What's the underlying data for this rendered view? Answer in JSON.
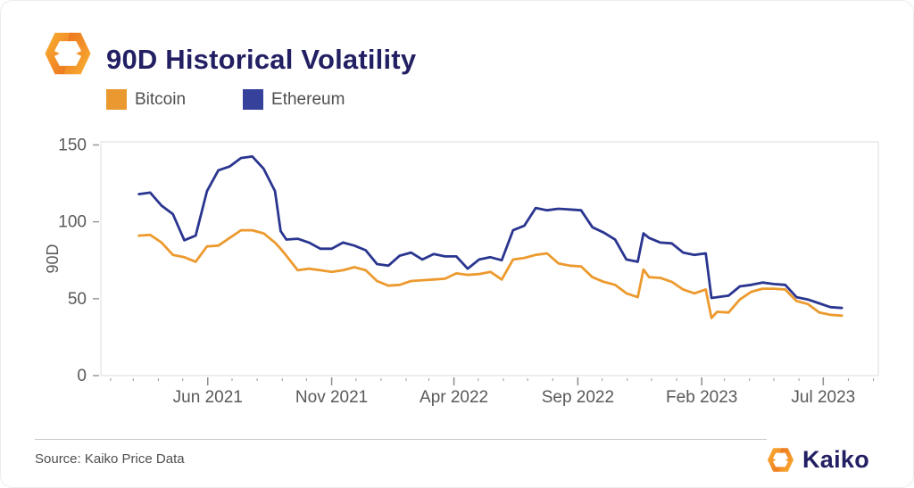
{
  "header": {
    "title": "90D Historical Volatility"
  },
  "legend": [
    {
      "label": "Bitcoin",
      "color": "#E9992F"
    },
    {
      "label": "Ethereum",
      "color": "#35419B"
    }
  ],
  "footer": {
    "source": "Source: Kaiko Price Data",
    "brand": "Kaiko"
  },
  "icons": {
    "brand_mark": "kaiko-hexagon-mark"
  },
  "colors": {
    "title": "#221f63",
    "axis_text": "#595959",
    "tick": "#9a9a9a",
    "plot_border": "#dddddd",
    "bitcoin_line": "#EC9A2E",
    "ethereum_line": "#2A3590"
  },
  "chart_data": {
    "type": "line",
    "title": "90D Historical Volatility",
    "xlabel": "",
    "ylabel": "90D",
    "ylim": [
      0,
      152
    ],
    "yticks": [
      0,
      50,
      100,
      150
    ],
    "grid": false,
    "legend_position": "top-left",
    "x_domain": [
      "2021-01-20",
      "2023-09-07"
    ],
    "xticks": [
      {
        "date": "2021-06-01",
        "label": "Jun 2021"
      },
      {
        "date": "2021-11-01",
        "label": "Nov 2021"
      },
      {
        "date": "2022-04-01",
        "label": "Apr 2022"
      },
      {
        "date": "2022-09-01",
        "label": "Sep 2022"
      },
      {
        "date": "2023-02-01",
        "label": "Feb 2023"
      },
      {
        "date": "2023-07-01",
        "label": "Jul 2023"
      }
    ],
    "minor_ticks": "monthly",
    "series": [
      {
        "name": "Bitcoin",
        "color": "#EC9A2E",
        "points": [
          [
            "2021-03-08",
            91
          ],
          [
            "2021-03-22",
            91.5
          ],
          [
            "2021-04-05",
            86.5
          ],
          [
            "2021-04-19",
            78.5
          ],
          [
            "2021-05-03",
            77
          ],
          [
            "2021-05-17",
            74
          ],
          [
            "2021-05-31",
            84
          ],
          [
            "2021-06-14",
            84.5
          ],
          [
            "2021-06-28",
            89.5
          ],
          [
            "2021-07-12",
            94.5
          ],
          [
            "2021-07-26",
            94.5
          ],
          [
            "2021-08-09",
            92.5
          ],
          [
            "2021-08-23",
            86.5
          ],
          [
            "2021-08-30",
            82.5
          ],
          [
            "2021-09-06",
            78
          ],
          [
            "2021-09-20",
            68.5
          ],
          [
            "2021-10-04",
            69.5
          ],
          [
            "2021-10-18",
            68.5
          ],
          [
            "2021-11-01",
            67.5
          ],
          [
            "2021-11-15",
            68.5
          ],
          [
            "2021-11-29",
            70.5
          ],
          [
            "2021-12-13",
            68.5
          ],
          [
            "2021-12-27",
            61.5
          ],
          [
            "2022-01-10",
            58.5
          ],
          [
            "2022-01-24",
            59
          ],
          [
            "2022-02-07",
            61.5
          ],
          [
            "2022-02-21",
            62
          ],
          [
            "2022-03-07",
            62.5
          ],
          [
            "2022-03-21",
            63
          ],
          [
            "2022-04-04",
            66.5
          ],
          [
            "2022-04-18",
            65.5
          ],
          [
            "2022-05-02",
            66
          ],
          [
            "2022-05-16",
            67.5
          ],
          [
            "2022-05-30",
            62.5
          ],
          [
            "2022-06-13",
            75.5
          ],
          [
            "2022-06-27",
            76.5
          ],
          [
            "2022-07-11",
            78.5
          ],
          [
            "2022-07-25",
            79.5
          ],
          [
            "2022-08-08",
            73
          ],
          [
            "2022-08-22",
            71.5
          ],
          [
            "2022-09-05",
            71
          ],
          [
            "2022-09-19",
            64
          ],
          [
            "2022-10-03",
            61
          ],
          [
            "2022-10-17",
            59
          ],
          [
            "2022-10-31",
            53.5
          ],
          [
            "2022-11-14",
            51
          ],
          [
            "2022-11-21",
            69
          ],
          [
            "2022-11-28",
            64
          ],
          [
            "2022-12-12",
            63.5
          ],
          [
            "2022-12-26",
            61
          ],
          [
            "2023-01-09",
            56
          ],
          [
            "2023-01-23",
            53.5
          ],
          [
            "2023-02-06",
            56
          ],
          [
            "2023-02-13",
            37.5
          ],
          [
            "2023-02-20",
            41.5
          ],
          [
            "2023-03-06",
            41
          ],
          [
            "2023-03-20",
            49.5
          ],
          [
            "2023-04-03",
            54.5
          ],
          [
            "2023-04-17",
            56.5
          ],
          [
            "2023-05-01",
            56.5
          ],
          [
            "2023-05-15",
            56
          ],
          [
            "2023-05-29",
            48.5
          ],
          [
            "2023-06-12",
            46.5
          ],
          [
            "2023-06-26",
            41
          ],
          [
            "2023-07-10",
            39.5
          ],
          [
            "2023-07-24",
            39
          ]
        ]
      },
      {
        "name": "Ethereum",
        "color": "#2A3590",
        "points": [
          [
            "2021-03-08",
            118
          ],
          [
            "2021-03-22",
            119
          ],
          [
            "2021-04-05",
            110.5
          ],
          [
            "2021-04-19",
            105
          ],
          [
            "2021-05-03",
            88
          ],
          [
            "2021-05-17",
            91
          ],
          [
            "2021-05-31",
            120
          ],
          [
            "2021-06-14",
            133.5
          ],
          [
            "2021-06-28",
            136
          ],
          [
            "2021-07-12",
            141.5
          ],
          [
            "2021-07-26",
            142.5
          ],
          [
            "2021-08-09",
            134.5
          ],
          [
            "2021-08-23",
            120
          ],
          [
            "2021-08-30",
            94
          ],
          [
            "2021-09-06",
            88.5
          ],
          [
            "2021-09-20",
            89
          ],
          [
            "2021-10-04",
            86.5
          ],
          [
            "2021-10-18",
            82.5
          ],
          [
            "2021-11-01",
            82.5
          ],
          [
            "2021-11-15",
            86.5
          ],
          [
            "2021-11-29",
            84.5
          ],
          [
            "2021-12-13",
            81.5
          ],
          [
            "2021-12-27",
            72.5
          ],
          [
            "2022-01-10",
            71.5
          ],
          [
            "2022-01-24",
            78
          ],
          [
            "2022-02-07",
            80
          ],
          [
            "2022-02-21",
            75.5
          ],
          [
            "2022-03-07",
            79
          ],
          [
            "2022-03-21",
            77.5
          ],
          [
            "2022-04-04",
            77.5
          ],
          [
            "2022-04-18",
            69.5
          ],
          [
            "2022-05-02",
            75.5
          ],
          [
            "2022-05-16",
            77
          ],
          [
            "2022-05-30",
            75
          ],
          [
            "2022-06-13",
            94.5
          ],
          [
            "2022-06-27",
            97.5
          ],
          [
            "2022-07-11",
            109
          ],
          [
            "2022-07-25",
            107.5
          ],
          [
            "2022-08-08",
            108.5
          ],
          [
            "2022-08-22",
            108
          ],
          [
            "2022-09-05",
            107.5
          ],
          [
            "2022-09-19",
            96.5
          ],
          [
            "2022-10-03",
            93
          ],
          [
            "2022-10-17",
            88.5
          ],
          [
            "2022-10-31",
            75.5
          ],
          [
            "2022-11-14",
            74
          ],
          [
            "2022-11-21",
            92.5
          ],
          [
            "2022-11-28",
            89.5
          ],
          [
            "2022-12-12",
            86.5
          ],
          [
            "2022-12-26",
            86
          ],
          [
            "2023-01-09",
            80
          ],
          [
            "2023-01-23",
            78.5
          ],
          [
            "2023-02-06",
            79.5
          ],
          [
            "2023-02-13",
            50.5
          ],
          [
            "2023-02-20",
            51
          ],
          [
            "2023-03-06",
            52
          ],
          [
            "2023-03-20",
            58
          ],
          [
            "2023-04-03",
            59
          ],
          [
            "2023-04-17",
            60.5
          ],
          [
            "2023-05-01",
            59.5
          ],
          [
            "2023-05-15",
            59
          ],
          [
            "2023-05-29",
            51
          ],
          [
            "2023-06-12",
            49.5
          ],
          [
            "2023-06-26",
            47
          ],
          [
            "2023-07-10",
            44.5
          ],
          [
            "2023-07-24",
            44
          ]
        ]
      }
    ]
  }
}
